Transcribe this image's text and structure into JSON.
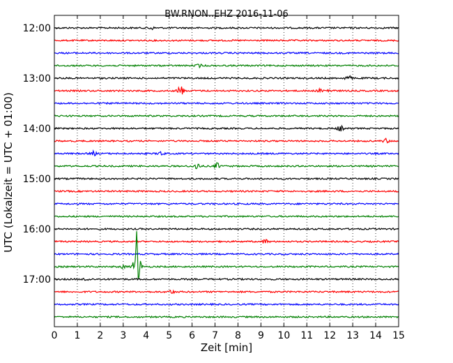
{
  "chart_data": {
    "type": "line",
    "title": "BW.RNON..EHZ 2016-11-06",
    "xlabel": "Zeit  [min]",
    "ylabel": "UTC (Lokalzeit = UTC + 01:00)",
    "xlim": [
      0,
      15
    ],
    "x_ticks": [
      "0",
      "1",
      "2",
      "3",
      "4",
      "5",
      "6",
      "7",
      "8",
      "9",
      "10",
      "11",
      "12",
      "13",
      "14",
      "15"
    ],
    "y_ticks": [
      "12:00",
      "13:00",
      "14:00",
      "15:00",
      "16:00",
      "17:00"
    ],
    "y_tick_rows": [
      0,
      4,
      8,
      12,
      16,
      20
    ],
    "grid": true,
    "legend": "none",
    "color_cycle": [
      "#000000",
      "#ff0000",
      "#0000ff",
      "#008000"
    ],
    "series": [
      {
        "start": "12:00",
        "events": [
          {
            "x": 4.2,
            "a": 2.5
          }
        ]
      },
      {
        "start": "12:15",
        "events": []
      },
      {
        "start": "12:30",
        "events": []
      },
      {
        "start": "12:45",
        "events": [
          {
            "x": 6.3,
            "a": 2
          }
        ]
      },
      {
        "start": "13:00",
        "events": [
          {
            "x": 12.8,
            "a": 4
          }
        ]
      },
      {
        "start": "13:15",
        "events": [
          {
            "x": 5.5,
            "a": 8
          },
          {
            "x": 11.6,
            "a": 2.5
          },
          {
            "x": 12.0,
            "a": 2
          }
        ]
      },
      {
        "start": "13:30",
        "events": []
      },
      {
        "start": "13:45",
        "events": []
      },
      {
        "start": "14:00",
        "events": [
          {
            "x": 12.45,
            "a": 4
          }
        ]
      },
      {
        "start": "14:15",
        "events": [
          {
            "x": 14.45,
            "a": 3
          }
        ]
      },
      {
        "start": "14:30",
        "events": [
          {
            "x": 1.7,
            "a": 3
          },
          {
            "x": 4.65,
            "a": 3
          }
        ]
      },
      {
        "start": "14:45",
        "events": [
          {
            "x": 6.2,
            "a": 5
          },
          {
            "x": 7.1,
            "a": 4
          }
        ]
      },
      {
        "start": "15:00",
        "events": []
      },
      {
        "start": "15:15",
        "events": []
      },
      {
        "start": "15:30",
        "events": []
      },
      {
        "start": "15:45",
        "events": []
      },
      {
        "start": "16:00",
        "events": []
      },
      {
        "start": "16:15",
        "events": [
          {
            "x": 9.2,
            "a": 3
          }
        ]
      },
      {
        "start": "16:30",
        "events": []
      },
      {
        "start": "16:45",
        "events": [
          {
            "x": 3.6,
            "a": 55
          },
          {
            "x": 3.0,
            "a": 2
          }
        ]
      },
      {
        "start": "17:00",
        "events": [
          {
            "x": 1.4,
            "a": 2.5
          }
        ]
      },
      {
        "start": "17:15",
        "events": [
          {
            "x": 5.1,
            "a": 2.5
          }
        ]
      },
      {
        "start": "17:30",
        "events": []
      },
      {
        "start": "17:45",
        "events": []
      }
    ]
  }
}
